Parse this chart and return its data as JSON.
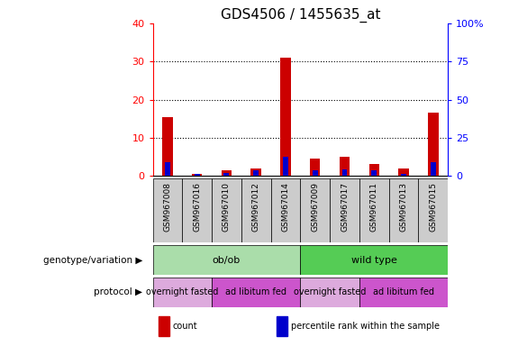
{
  "title": "GDS4506 / 1455635_at",
  "samples": [
    "GSM967008",
    "GSM967016",
    "GSM967010",
    "GSM967012",
    "GSM967014",
    "GSM967009",
    "GSM967017",
    "GSM967011",
    "GSM967013",
    "GSM967015"
  ],
  "count_values": [
    15.5,
    0.5,
    1.5,
    2.0,
    31.0,
    4.5,
    5.0,
    3.0,
    2.0,
    16.5
  ],
  "percentile_values": [
    9.0,
    1.0,
    2.0,
    3.5,
    12.5,
    3.5,
    4.0,
    3.5,
    1.5,
    9.0
  ],
  "left_ylim": [
    0,
    40
  ],
  "right_ylim": [
    0,
    100
  ],
  "left_yticks": [
    0,
    10,
    20,
    30,
    40
  ],
  "right_yticks": [
    0,
    25,
    50,
    75,
    100
  ],
  "right_yticklabels": [
    "0",
    "25",
    "50",
    "75",
    "100%"
  ],
  "count_color": "#cc0000",
  "percentile_color": "#0000cc",
  "genotype_groups": [
    {
      "label": "ob/ob",
      "start": 0,
      "end": 5,
      "color": "#aaddaa"
    },
    {
      "label": "wild type",
      "start": 5,
      "end": 10,
      "color": "#55cc55"
    }
  ],
  "protocol_groups": [
    {
      "label": "overnight fasted",
      "start": 0,
      "end": 2,
      "color": "#ddaadd"
    },
    {
      "label": "ad libitum fed",
      "start": 2,
      "end": 5,
      "color": "#cc55cc"
    },
    {
      "label": "overnight fasted",
      "start": 5,
      "end": 7,
      "color": "#ddaadd"
    },
    {
      "label": "ad libitum fed",
      "start": 7,
      "end": 10,
      "color": "#cc55cc"
    }
  ],
  "sample_bg_color": "#cccccc",
  "legend_items": [
    {
      "label": "count",
      "color": "#cc0000"
    },
    {
      "label": "percentile rank within the sample",
      "color": "#0000cc"
    }
  ]
}
